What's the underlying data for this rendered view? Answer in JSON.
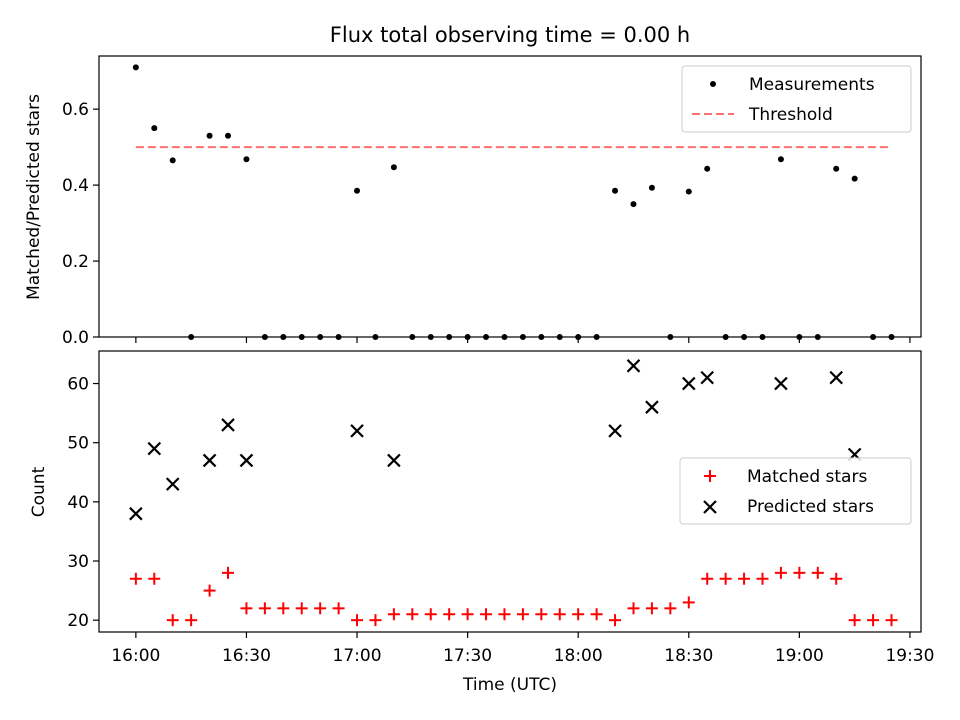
{
  "chart_data": [
    {
      "type": "scatter",
      "title": "Flux total observing time = 0.00 h",
      "xlabel": "",
      "ylabel": "Matched/Predicted stars",
      "ylim": [
        0,
        0.74
      ],
      "yticks": [
        "0.0",
        "0.2",
        "0.4",
        "0.6"
      ],
      "legend_position": "top-right",
      "series": [
        {
          "name": "Measurements",
          "color": "#000000",
          "marker": "dot",
          "x": [
            "16:00",
            "16:05",
            "16:10",
            "16:15",
            "16:20",
            "16:25",
            "16:30",
            "16:35",
            "16:40",
            "16:45",
            "16:50",
            "16:55",
            "17:00",
            "17:05",
            "17:10",
            "17:15",
            "17:20",
            "17:25",
            "17:30",
            "17:35",
            "17:40",
            "17:45",
            "17:50",
            "17:55",
            "18:00",
            "18:05",
            "18:10",
            "18:15",
            "18:20",
            "18:25",
            "18:30",
            "18:35",
            "18:40",
            "18:45",
            "18:50",
            "18:55",
            "19:00",
            "19:05",
            "19:10",
            "19:15",
            "19:20",
            "19:25"
          ],
          "values": [
            0.71,
            0.55,
            0.465,
            0.0,
            0.53,
            0.53,
            0.468,
            0.0,
            0.0,
            0.0,
            0.0,
            0.0,
            0.385,
            0.0,
            0.447,
            0.0,
            0.0,
            0.0,
            0.0,
            0.0,
            0.0,
            0.0,
            0.0,
            0.0,
            0.0,
            0.0,
            0.385,
            0.35,
            0.393,
            0.0,
            0.383,
            0.443,
            0.0,
            0.0,
            0.0,
            0.468,
            0.0,
            0.0,
            0.443,
            0.417,
            0.0,
            0.0
          ]
        },
        {
          "name": "Threshold",
          "color": "#ff7070",
          "style": "dashed",
          "x": [
            "16:00",
            "19:25"
          ],
          "values": [
            0.5,
            0.5
          ]
        }
      ]
    },
    {
      "type": "scatter",
      "title": "",
      "xlabel": "Time (UTC)",
      "ylabel": "Count",
      "ylim": [
        18,
        65.5
      ],
      "yticks": [
        "20",
        "30",
        "40",
        "50",
        "60"
      ],
      "xlim": [
        "15:50",
        "19:33"
      ],
      "xticks": [
        "16:00",
        "16:30",
        "17:00",
        "17:30",
        "18:00",
        "18:30",
        "19:00",
        "19:30"
      ],
      "legend_position": "center-right",
      "series": [
        {
          "name": "Matched stars",
          "color": "#ff0000",
          "marker": "plus",
          "x": [
            "16:00",
            "16:05",
            "16:10",
            "16:15",
            "16:20",
            "16:25",
            "16:30",
            "16:35",
            "16:40",
            "16:45",
            "16:50",
            "16:55",
            "17:00",
            "17:05",
            "17:10",
            "17:15",
            "17:20",
            "17:25",
            "17:30",
            "17:35",
            "17:40",
            "17:45",
            "17:50",
            "17:55",
            "18:00",
            "18:05",
            "18:10",
            "18:15",
            "18:20",
            "18:25",
            "18:30",
            "18:35",
            "18:40",
            "18:45",
            "18:50",
            "18:55",
            "19:00",
            "19:05",
            "19:10",
            "19:15",
            "19:20",
            "19:25"
          ],
          "values": [
            27,
            27,
            20,
            20,
            25,
            28,
            22,
            22,
            22,
            22,
            22,
            22,
            20,
            20,
            21,
            21,
            21,
            21,
            21,
            21,
            21,
            21,
            21,
            21,
            21,
            21,
            20,
            22,
            22,
            22,
            23,
            27,
            27,
            27,
            27,
            28,
            28,
            28,
            27,
            20,
            20,
            20
          ]
        },
        {
          "name": "Predicted stars",
          "color": "#000000",
          "marker": "x",
          "x": [
            "16:00",
            "16:05",
            "16:10",
            "16:20",
            "16:25",
            "16:30",
            "17:00",
            "17:10",
            "18:10",
            "18:15",
            "18:20",
            "18:30",
            "18:35",
            "18:55",
            "19:10",
            "19:15"
          ],
          "values": [
            38,
            49,
            43,
            47,
            53,
            47,
            52,
            47,
            52,
            63,
            56,
            60,
            61,
            60,
            61,
            48
          ]
        }
      ]
    }
  ]
}
